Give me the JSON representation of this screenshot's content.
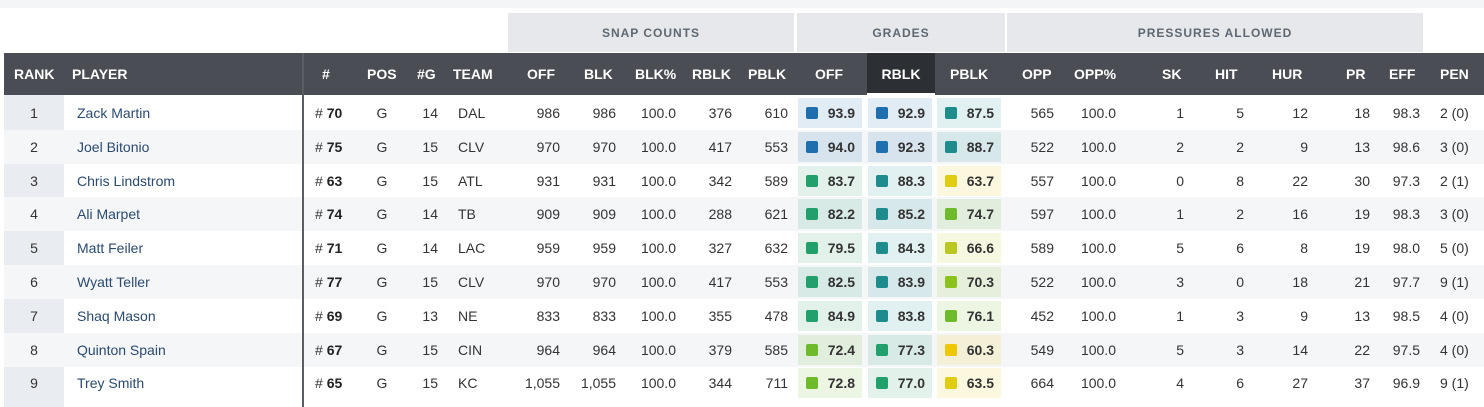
{
  "groups": {
    "snap_counts": "SNAP COUNTS",
    "grades": "GRADES",
    "pressures_allowed": "PRESSURES ALLOWED"
  },
  "columns": {
    "rank": "RANK",
    "player": "PLAYER",
    "num": "#",
    "pos": "POS",
    "games": "#G",
    "team": "TEAM",
    "off": "OFF",
    "blk": "BLK",
    "blk_pct": "BLK%",
    "rblk": "RBLK",
    "pblk": "PBLK",
    "g_off": "OFF",
    "g_rblk": "RBLK",
    "g_pblk": "PBLK",
    "opp": "OPP",
    "opp_pct": "OPP%",
    "sk": "SK",
    "hit": "HIT",
    "hur": "HUR",
    "pr": "PR",
    "eff": "EFF",
    "pen": "PEN"
  },
  "grade_colors": {
    "elite": "#1f6fae",
    "high": "#1e8c8c",
    "good": "#22a06b",
    "above_avg": "#6dba2a",
    "avg": "#b8c81e",
    "below_avg": "#f0c800"
  },
  "rows": [
    {
      "rank": "1",
      "player": "Zack Martin",
      "hash": "#",
      "num": "70",
      "pos": "G",
      "games": "14",
      "team": "DAL",
      "off": "986",
      "blk": "986",
      "blk_pct": "100.0",
      "rblk": "376",
      "pblk": "610",
      "g_off": "93.9",
      "g_off_color": "#1f6fae",
      "g_rblk": "92.9",
      "g_rblk_color": "#1f6fae",
      "g_pblk": "87.5",
      "g_pblk_color": "#1e8c8c",
      "opp": "565",
      "opp_pct": "100.0",
      "sk": "1",
      "hit": "5",
      "hur": "12",
      "pr": "18",
      "eff": "98.3",
      "pen": "2 (0)"
    },
    {
      "rank": "2",
      "player": "Joel Bitonio",
      "hash": "#",
      "num": "75",
      "pos": "G",
      "games": "15",
      "team": "CLV",
      "off": "970",
      "blk": "970",
      "blk_pct": "100.0",
      "rblk": "417",
      "pblk": "553",
      "g_off": "94.0",
      "g_off_color": "#1f6fae",
      "g_rblk": "92.3",
      "g_rblk_color": "#1f6fae",
      "g_pblk": "88.7",
      "g_pblk_color": "#1e8c8c",
      "opp": "522",
      "opp_pct": "100.0",
      "sk": "2",
      "hit": "2",
      "hur": "9",
      "pr": "13",
      "eff": "98.6",
      "pen": "3 (0)"
    },
    {
      "rank": "3",
      "player": "Chris Lindstrom",
      "hash": "#",
      "num": "63",
      "pos": "G",
      "games": "15",
      "team": "ATL",
      "off": "931",
      "blk": "931",
      "blk_pct": "100.0",
      "rblk": "342",
      "pblk": "589",
      "g_off": "83.7",
      "g_off_color": "#22a06b",
      "g_rblk": "88.3",
      "g_rblk_color": "#1e8c8c",
      "g_pblk": "63.7",
      "g_pblk_color": "#e0cc10",
      "opp": "557",
      "opp_pct": "100.0",
      "sk": "0",
      "hit": "8",
      "hur": "22",
      "pr": "30",
      "eff": "97.3",
      "pen": "2 (1)"
    },
    {
      "rank": "4",
      "player": "Ali Marpet",
      "hash": "#",
      "num": "74",
      "pos": "G",
      "games": "14",
      "team": "TB",
      "off": "909",
      "blk": "909",
      "blk_pct": "100.0",
      "rblk": "288",
      "pblk": "621",
      "g_off": "82.2",
      "g_off_color": "#22a06b",
      "g_rblk": "85.2",
      "g_rblk_color": "#1e8c8c",
      "g_pblk": "74.7",
      "g_pblk_color": "#6dba2a",
      "opp": "597",
      "opp_pct": "100.0",
      "sk": "1",
      "hit": "2",
      "hur": "16",
      "pr": "19",
      "eff": "98.3",
      "pen": "3 (0)"
    },
    {
      "rank": "5",
      "player": "Matt Feiler",
      "hash": "#",
      "num": "71",
      "pos": "G",
      "games": "14",
      "team": "LAC",
      "off": "959",
      "blk": "959",
      "blk_pct": "100.0",
      "rblk": "327",
      "pblk": "632",
      "g_off": "79.5",
      "g_off_color": "#22a06b",
      "g_rblk": "84.3",
      "g_rblk_color": "#1e8c8c",
      "g_pblk": "66.6",
      "g_pblk_color": "#b8c81e",
      "opp": "589",
      "opp_pct": "100.0",
      "sk": "5",
      "hit": "6",
      "hur": "8",
      "pr": "19",
      "eff": "98.0",
      "pen": "5 (0)"
    },
    {
      "rank": "6",
      "player": "Wyatt Teller",
      "hash": "#",
      "num": "77",
      "pos": "G",
      "games": "15",
      "team": "CLV",
      "off": "970",
      "blk": "970",
      "blk_pct": "100.0",
      "rblk": "417",
      "pblk": "553",
      "g_off": "82.5",
      "g_off_color": "#22a06b",
      "g_rblk": "83.9",
      "g_rblk_color": "#1e8c8c",
      "g_pblk": "70.3",
      "g_pblk_color": "#8cc21e",
      "opp": "522",
      "opp_pct": "100.0",
      "sk": "3",
      "hit": "0",
      "hur": "18",
      "pr": "21",
      "eff": "97.7",
      "pen": "9 (1)"
    },
    {
      "rank": "7",
      "player": "Shaq Mason",
      "hash": "#",
      "num": "69",
      "pos": "G",
      "games": "13",
      "team": "NE",
      "off": "833",
      "blk": "833",
      "blk_pct": "100.0",
      "rblk": "355",
      "pblk": "478",
      "g_off": "84.9",
      "g_off_color": "#22a06b",
      "g_rblk": "83.8",
      "g_rblk_color": "#1e8c8c",
      "g_pblk": "76.1",
      "g_pblk_color": "#6dba2a",
      "opp": "452",
      "opp_pct": "100.0",
      "sk": "1",
      "hit": "3",
      "hur": "9",
      "pr": "13",
      "eff": "98.5",
      "pen": "4 (0)"
    },
    {
      "rank": "8",
      "player": "Quinton Spain",
      "hash": "#",
      "num": "67",
      "pos": "G",
      "games": "15",
      "team": "CIN",
      "off": "964",
      "blk": "964",
      "blk_pct": "100.0",
      "rblk": "379",
      "pblk": "585",
      "g_off": "72.4",
      "g_off_color": "#6dba2a",
      "g_rblk": "77.3",
      "g_rblk_color": "#22a06b",
      "g_pblk": "60.3",
      "g_pblk_color": "#f0c800",
      "opp": "549",
      "opp_pct": "100.0",
      "sk": "5",
      "hit": "3",
      "hur": "14",
      "pr": "22",
      "eff": "97.5",
      "pen": "4 (0)"
    },
    {
      "rank": "9",
      "player": "Trey Smith",
      "hash": "#",
      "num": "65",
      "pos": "G",
      "games": "15",
      "team": "KC",
      "off": "1,055",
      "blk": "1,055",
      "blk_pct": "100.0",
      "rblk": "344",
      "pblk": "711",
      "g_off": "72.8",
      "g_off_color": "#6dba2a",
      "g_rblk": "77.0",
      "g_rblk_color": "#22a06b",
      "g_pblk": "63.5",
      "g_pblk_color": "#e0cc10",
      "opp": "664",
      "opp_pct": "100.0",
      "sk": "4",
      "hit": "6",
      "hur": "27",
      "pr": "37",
      "eff": "96.9",
      "pen": "9 (1)"
    }
  ]
}
